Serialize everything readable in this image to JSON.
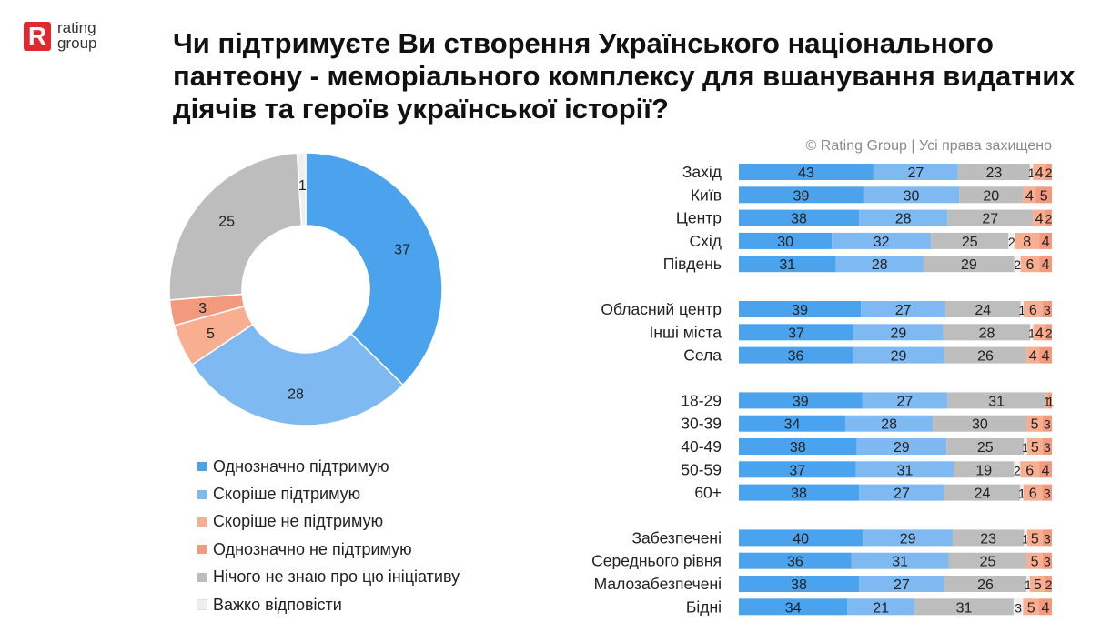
{
  "logo": {
    "line1": "rating",
    "line2": "group",
    "mark": "R"
  },
  "title": "Чи підтримуєте Ви створення Українського національного пантеону - меморіального комплексу для вшанування видатних діячів та героїв української історії?",
  "copyright": "© Rating Group | Усі права захищено",
  "colors": {
    "strong_support": "#4aa3ec",
    "rather_support": "#7fb9f2",
    "rather_not": "#f8ae90",
    "strong_not": "#f39a7e",
    "dont_know": "#bdbdbd",
    "hard_to_say": "#efefef"
  },
  "chart_data": [
    {
      "type": "pie",
      "variant": "donut",
      "slices": [
        {
          "label": "Однозначно підтримую",
          "value": 37,
          "color": "#4aa3ec"
        },
        {
          "label": "Скоріше підтримую",
          "value": 28,
          "color": "#7fb9f2"
        },
        {
          "label": "Скоріше не підтримую",
          "value": 5,
          "color": "#f8ae90"
        },
        {
          "label": "Однозначно не підтримую",
          "value": 3,
          "color": "#f39a7e"
        },
        {
          "label": "Нічого не знаю про цю ініціативу",
          "value": 25,
          "color": "#bdbdbd"
        },
        {
          "label": "Важко відповісти",
          "value": 1,
          "color": "#efefef"
        }
      ],
      "legend": "bottom"
    },
    {
      "type": "bar",
      "orientation": "horizontal",
      "stacked": true,
      "series_order": [
        "Однозначно підтримую",
        "Скоріше підтримую",
        "Нічого не знаю про цю ініціативу",
        "Важко відповісти",
        "Скоріше не підтримую",
        "Однозначно не підтримую"
      ],
      "series_colors": [
        "#4aa3ec",
        "#7fb9f2",
        "#bdbdbd",
        "#efefef",
        "#f8ae90",
        "#f39a7e"
      ],
      "groups": [
        {
          "rows": [
            {
              "label": "Захід",
              "values": [
                43,
                27,
                23,
                1,
                4,
                2
              ]
            },
            {
              "label": "Київ",
              "values": [
                39,
                30,
                20,
                0,
                4,
                5
              ]
            },
            {
              "label": "Центр",
              "values": [
                38,
                28,
                27,
                0,
                4,
                2
              ]
            },
            {
              "label": "Схід",
              "values": [
                30,
                32,
                25,
                2,
                8,
                4
              ]
            },
            {
              "label": "Південь",
              "values": [
                31,
                28,
                29,
                2,
                6,
                4
              ]
            }
          ]
        },
        {
          "rows": [
            {
              "label": "Обласний центр",
              "values": [
                39,
                27,
                24,
                1,
                6,
                3
              ]
            },
            {
              "label": "Інші міста",
              "values": [
                37,
                29,
                28,
                1,
                4,
                2
              ]
            },
            {
              "label": "Села",
              "values": [
                36,
                29,
                26,
                0,
                4,
                4
              ]
            }
          ]
        },
        {
          "rows": [
            {
              "label": "18-29",
              "values": [
                39,
                27,
                31,
                0,
                1,
                1
              ]
            },
            {
              "label": "30-39",
              "values": [
                34,
                28,
                30,
                0,
                5,
                3
              ]
            },
            {
              "label": "40-49",
              "values": [
                38,
                29,
                25,
                1,
                5,
                3
              ]
            },
            {
              "label": "50-59",
              "values": [
                37,
                31,
                19,
                2,
                6,
                4
              ]
            },
            {
              "label": "60+",
              "values": [
                38,
                27,
                24,
                1,
                6,
                3
              ]
            }
          ]
        },
        {
          "rows": [
            {
              "label": "Забезпечені",
              "values": [
                40,
                29,
                23,
                1,
                5,
                3
              ]
            },
            {
              "label": "Середнього рівня",
              "values": [
                36,
                31,
                25,
                0,
                5,
                3
              ]
            },
            {
              "label": "Малозабезпечені",
              "values": [
                38,
                27,
                26,
                1,
                5,
                2
              ]
            },
            {
              "label": "Бідні",
              "values": [
                34,
                21,
                31,
                3,
                5,
                4
              ]
            }
          ]
        }
      ]
    }
  ]
}
